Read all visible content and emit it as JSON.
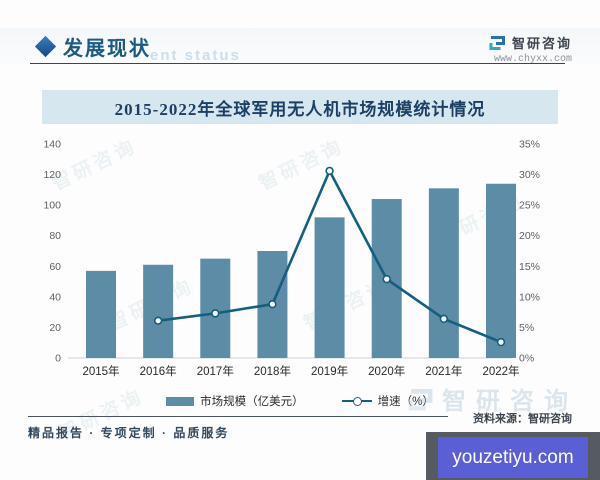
{
  "header": {
    "section_title": "发展现状",
    "section_watermark": "ent status",
    "brand_name": "智研咨询",
    "brand_url": "www.chyxx.com"
  },
  "chart_title": "2015-2022年全球军用无人机市场规模统计情况",
  "chart_data": {
    "type": "bar",
    "title": "2015-2022年全球军用无人机市场规模统计情况",
    "categories": [
      "2015年",
      "2016年",
      "2017年",
      "2018年",
      "2019年",
      "2020年",
      "2021年",
      "2022年"
    ],
    "series": [
      {
        "name": "市场规模（亿美元）",
        "kind": "bar",
        "axis": "left",
        "values": [
          57,
          61,
          65,
          70,
          92,
          104,
          111,
          114
        ]
      },
      {
        "name": "增速（%）",
        "kind": "line",
        "axis": "right",
        "values": [
          null,
          6.1,
          7.3,
          8.8,
          30.6,
          12.9,
          6.4,
          2.6
        ]
      }
    ],
    "left_axis": {
      "min": 0,
      "max": 140,
      "step": 20,
      "suffix": ""
    },
    "right_axis": {
      "min": 0,
      "max": 35,
      "step": 5,
      "suffix": "%"
    },
    "grid": false,
    "legend_position": "bottom"
  },
  "legend": {
    "bar_label": "市场规模（亿美元）",
    "line_label": "增速（%）"
  },
  "footer": {
    "left_text": "精品报告 · 专项定制 · 品质服务",
    "source_text": "资料来源：智研咨询",
    "logo_watermark_text": "智研咨询",
    "site_watermark": "youzetiyu.com"
  },
  "watermark_text": "智研咨询",
  "colors": {
    "bar": "#5d8ca6",
    "line": "#145f7f",
    "accent_blue": "#2a6fb5",
    "accent_teal": "#37a8b5",
    "title_bg": "#d7e7f0",
    "title_text": "#1c3f63",
    "watermark_box": "#5a5fd6"
  }
}
